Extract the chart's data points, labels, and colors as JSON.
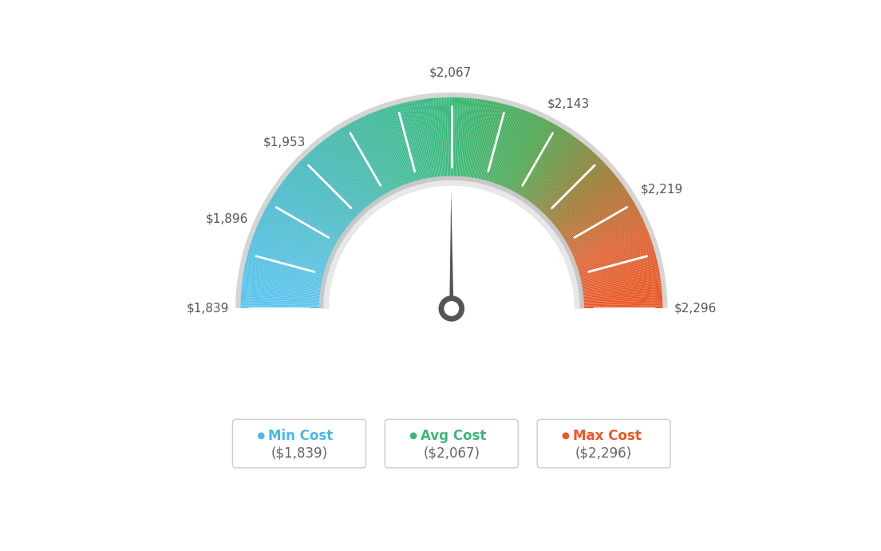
{
  "min_val": 1839,
  "max_val": 2296,
  "avg_val": 2067,
  "tick_labels": [
    "$1,839",
    "$1,896",
    "$1,953",
    "$2,067",
    "$2,143",
    "$2,219",
    "$2,296"
  ],
  "tick_values": [
    1839,
    1896,
    1953,
    2067,
    2143,
    2219,
    2296
  ],
  "n_ticks_total": 13,
  "legend_items": [
    {
      "label": "Min Cost",
      "value": "($1,839)",
      "color": "#4ab8e8"
    },
    {
      "label": "Avg Cost",
      "value": "($2,067)",
      "color": "#3cb87a"
    },
    {
      "label": "Max Cost",
      "value": "($2,296)",
      "color": "#f05525"
    }
  ],
  "background_color": "#ffffff",
  "color_stops": [
    [
      0.0,
      [
        91,
        196,
        240
      ]
    ],
    [
      0.25,
      [
        72,
        185,
        190
      ]
    ],
    [
      0.5,
      [
        55,
        185,
        120
      ]
    ],
    [
      0.65,
      [
        80,
        165,
        80
      ]
    ],
    [
      0.78,
      [
        160,
        120,
        50
      ]
    ],
    [
      0.88,
      [
        220,
        100,
        50
      ]
    ],
    [
      1.0,
      [
        235,
        85,
        35
      ]
    ]
  ]
}
